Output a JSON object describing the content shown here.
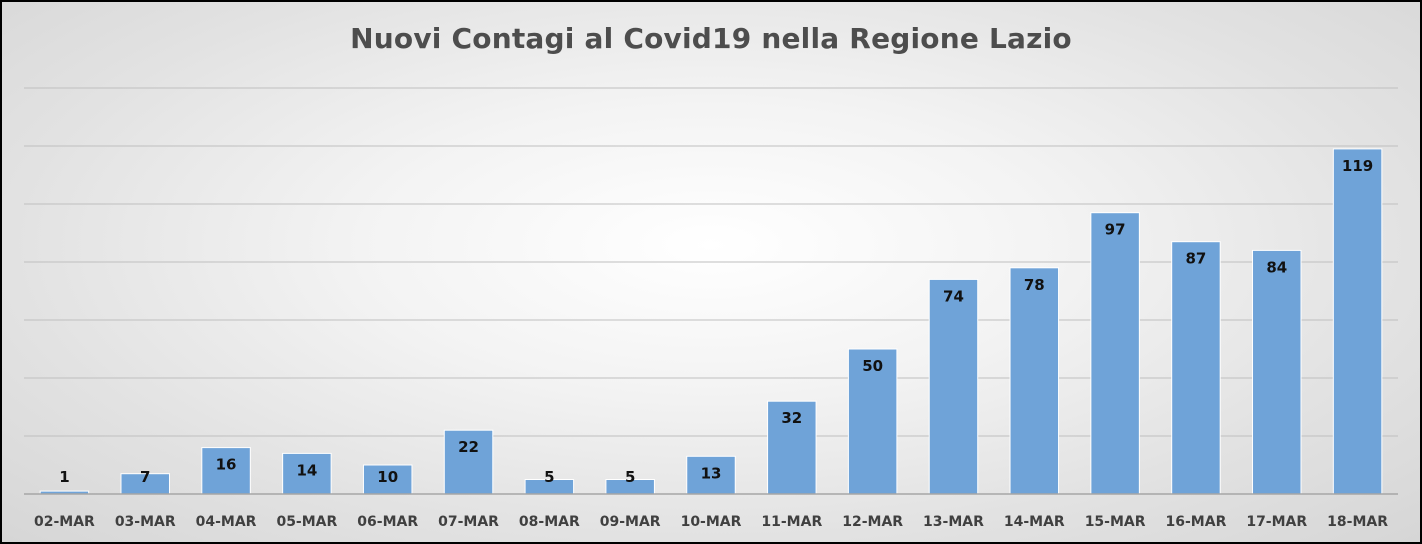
{
  "chart_data": {
    "type": "bar",
    "title": "Nuovi Contagi al Covid19 nella Regione Lazio",
    "xlabel": "",
    "ylabel": "",
    "categories": [
      "02-MAR",
      "03-MAR",
      "04-MAR",
      "05-MAR",
      "06-MAR",
      "07-MAR",
      "08-MAR",
      "09-MAR",
      "10-MAR",
      "11-MAR",
      "12-MAR",
      "13-MAR",
      "14-MAR",
      "15-MAR",
      "16-MAR",
      "17-MAR",
      "18-MAR"
    ],
    "values": [
      1,
      7,
      16,
      14,
      10,
      22,
      5,
      5,
      13,
      32,
      50,
      74,
      78,
      97,
      87,
      84,
      119
    ],
    "ylim": [
      0,
      140
    ],
    "y_gridline_step": 20,
    "grid": true,
    "y_tick_labels_visible": false,
    "data_labels": true,
    "legend": "none",
    "bar_color": "#6fa3d8",
    "bar_edge_color": "#ffffff",
    "grid_color": "#bfbfbf"
  }
}
